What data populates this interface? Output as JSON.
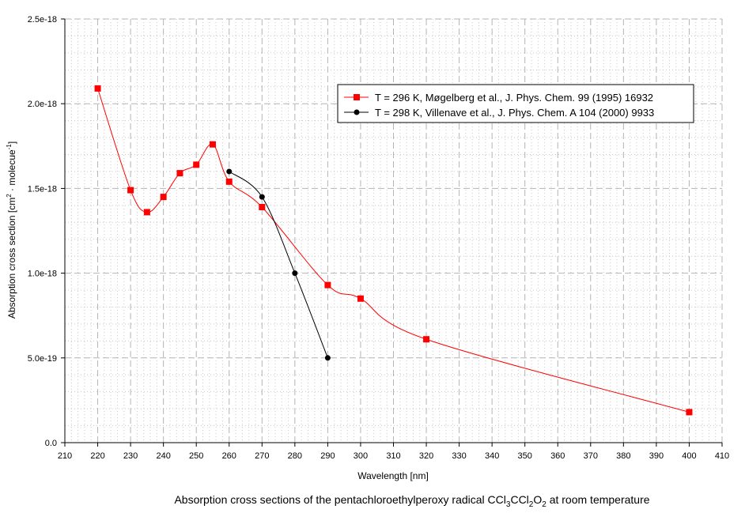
{
  "chart_data": {
    "type": "line",
    "title": "Absorption cross sections of the pentachloroethylperoxy radical CCl",
    "title_parts": [
      "Absorption cross sections of the pentachloroethylperoxy radical CCl",
      "3",
      "CCl",
      "2",
      "O",
      "2",
      " at room temperature"
    ],
    "xlabel": "Wavelength [nm]",
    "ylabel_parts": [
      "Absorption cross section [cm",
      "2",
      " · molecue",
      "-1",
      "]"
    ],
    "xlim": [
      210,
      410
    ],
    "ylim": [
      0,
      2.5e-18
    ],
    "x_ticks": [
      "210",
      "220",
      "230",
      "240",
      "250",
      "260",
      "270",
      "280",
      "290",
      "300",
      "310",
      "320",
      "330",
      "340",
      "350",
      "360",
      "370",
      "380",
      "390",
      "400",
      "410"
    ],
    "y_ticks": [
      "0.0",
      "5.0e-19",
      "1.0e-18",
      "1.5e-18",
      "2.0e-18",
      "2.5e-18"
    ],
    "grid": true,
    "legend_position": "top-right",
    "series": [
      {
        "name": "T = 296 K, Møgelberg et al., J. Phys. Chem. 99 (1995) 16932",
        "color": "#ff0000",
        "marker": "square",
        "x": [
          220,
          230,
          235,
          240,
          245,
          250,
          255,
          260,
          270,
          290,
          300,
          320,
          400
        ],
        "y": [
          2.09e-18,
          1.49e-18,
          1.36e-18,
          1.45e-18,
          1.59e-18,
          1.64e-18,
          1.76e-18,
          1.54e-18,
          1.39e-18,
          9.3e-19,
          8.5e-19,
          6.1e-19,
          1.8e-19
        ]
      },
      {
        "name": "T = 298 K, Villenave et al., J. Phys. Chem. A 104 (2000) 9933",
        "color": "#000000",
        "marker": "circle",
        "x": [
          260,
          270,
          280,
          290
        ],
        "y": [
          1.6e-18,
          1.45e-18,
          1e-18,
          5e-19
        ]
      }
    ]
  }
}
